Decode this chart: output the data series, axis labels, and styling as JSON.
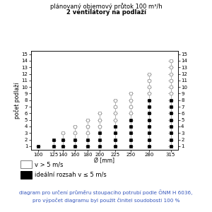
{
  "title_line1": "plánovaný objemový průtok 100 m³/h",
  "title_line2": "2 ventilátory na podlaží",
  "xlabel": "Ø [mm]",
  "ylabel": "počet podlaží",
  "diameters": [
    100,
    125,
    140,
    160,
    180,
    200,
    225,
    250,
    280,
    315
  ],
  "max_floors": [
    1,
    2,
    3,
    4,
    5,
    6,
    8,
    9,
    12,
    14
  ],
  "black_floors": [
    1,
    2,
    2,
    2,
    2,
    3,
    4,
    5,
    8,
    8
  ],
  "ylim": [
    0.5,
    15.5
  ],
  "yticks": [
    1,
    2,
    3,
    4,
    5,
    6,
    7,
    8,
    9,
    10,
    11,
    12,
    13,
    14,
    15
  ],
  "xtick_labels": [
    "100",
    "125",
    "140",
    "160",
    "180",
    "200",
    "225",
    "250",
    "280",
    "315"
  ],
  "footnote_line1": "diagram pro určení průměru stoupacího potrubí podle ÖNM H 6036,",
  "footnote_line2": "pro výpočet diagramu byl použit činitel soudobosti 100 %",
  "legend_white": "v > 5 m/s",
  "legend_black": "ideální rozsah v ≤ 5 m/s",
  "marker_size": 3.5,
  "background_color": "#ffffff",
  "gray_color": "#aaaaaa",
  "black_color": "#000000",
  "footnote_color": "#3355bb"
}
